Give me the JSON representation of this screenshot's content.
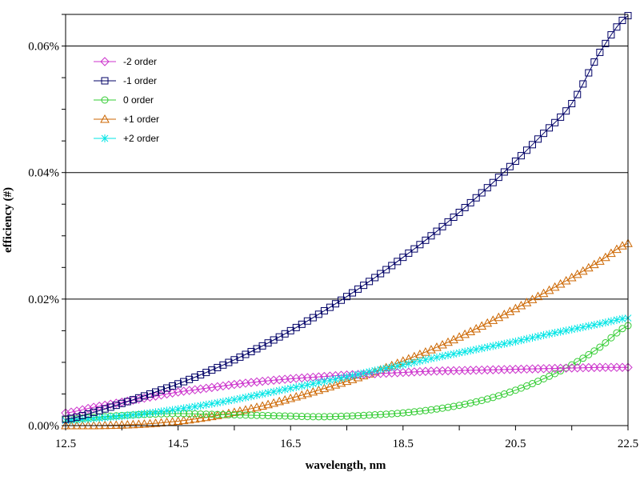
{
  "chart_data": {
    "type": "line",
    "xlabel": "wavelength, nm",
    "ylabel": "efficiency (#)",
    "xlim": [
      12.5,
      22.5
    ],
    "ylim": [
      0,
      0.065
    ],
    "x_ticks": [
      "12.5",
      "14.5",
      "16.5",
      "18.5",
      "20.5",
      "22.5"
    ],
    "y_ticks": [
      "0.00%",
      "0.02%",
      "0.04%",
      "0.06%"
    ],
    "y_tick_values": [
      0,
      0.02,
      0.04,
      0.06
    ],
    "x_tick_values": [
      12.5,
      14.5,
      16.5,
      18.5,
      20.5,
      22.5
    ],
    "grid": "horizontal",
    "legend_position": "top-left",
    "x": [
      12.5,
      13.0,
      13.5,
      14.0,
      14.5,
      15.0,
      15.5,
      16.0,
      16.5,
      17.0,
      17.5,
      18.0,
      18.5,
      19.0,
      19.5,
      20.0,
      20.5,
      21.0,
      21.5,
      22.0,
      22.5
    ],
    "series": [
      {
        "name": "-2 order",
        "color": "#cc33cc",
        "marker": "diamond",
        "values": [
          0.002,
          0.0029,
          0.0037,
          0.0045,
          0.0053,
          0.0059,
          0.0065,
          0.007,
          0.0074,
          0.0077,
          0.008,
          0.0082,
          0.0084,
          0.0086,
          0.0087,
          0.0088,
          0.0089,
          0.009,
          0.0091,
          0.0092,
          0.0092
        ]
      },
      {
        "name": "-1 order",
        "color": "#000066",
        "marker": "square",
        "values": [
          0.001,
          0.0021,
          0.0035,
          0.005,
          0.0066,
          0.0084,
          0.0104,
          0.0126,
          0.015,
          0.0176,
          0.0204,
          0.0234,
          0.0266,
          0.03,
          0.0337,
          0.0376,
          0.0418,
          0.0462,
          0.0509,
          0.059,
          0.0648
        ]
      },
      {
        "name": "0 order",
        "color": "#33cc33",
        "marker": "circle",
        "values": [
          0.001,
          0.0013,
          0.0016,
          0.0018,
          0.0019,
          0.0018,
          0.0017,
          0.0016,
          0.0015,
          0.0014,
          0.0015,
          0.0017,
          0.002,
          0.0025,
          0.0032,
          0.0042,
          0.0056,
          0.0074,
          0.0096,
          0.0124,
          0.0158
        ]
      },
      {
        "name": "+1 order",
        "color": "#cc6600",
        "marker": "triangle",
        "values": [
          0.0,
          0.0,
          0.0001,
          0.0003,
          0.0007,
          0.0013,
          0.0021,
          0.0031,
          0.0043,
          0.0056,
          0.007,
          0.0085,
          0.0102,
          0.012,
          0.014,
          0.0162,
          0.0185,
          0.0209,
          0.0234,
          0.026,
          0.0288
        ]
      },
      {
        "name": "+2 order",
        "color": "#00e5e5",
        "marker": "star",
        "values": [
          0.0008,
          0.0011,
          0.0015,
          0.002,
          0.0026,
          0.0033,
          0.0041,
          0.005,
          0.0059,
          0.0068,
          0.0077,
          0.0087,
          0.0096,
          0.0106,
          0.0115,
          0.0124,
          0.0133,
          0.0143,
          0.0152,
          0.0161,
          0.017
        ]
      }
    ]
  }
}
